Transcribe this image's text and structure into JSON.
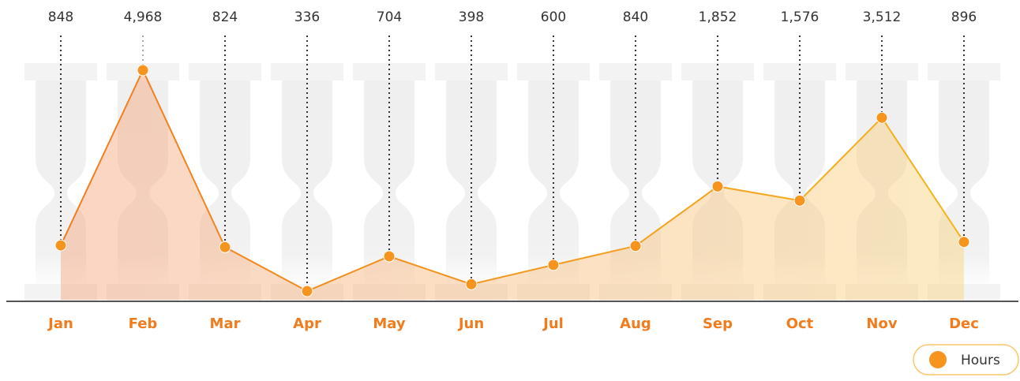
{
  "chart_data": {
    "type": "line",
    "categories": [
      "Jan",
      "Feb",
      "Mar",
      "Apr",
      "May",
      "Jun",
      "Jul",
      "Aug",
      "Sep",
      "Oct",
      "Nov",
      "Dec"
    ],
    "series": [
      {
        "name": "Hours",
        "color": "#f7941d",
        "values": [
          848,
          4968,
          824,
          336,
          704,
          398,
          600,
          840,
          1852,
          1576,
          3512,
          896
        ],
        "value_labels": [
          "848",
          "4,968",
          "824",
          "336",
          "704",
          "398",
          "600",
          "840",
          "1,852",
          "1,576",
          "3,512",
          "896"
        ]
      }
    ]
  }
}
